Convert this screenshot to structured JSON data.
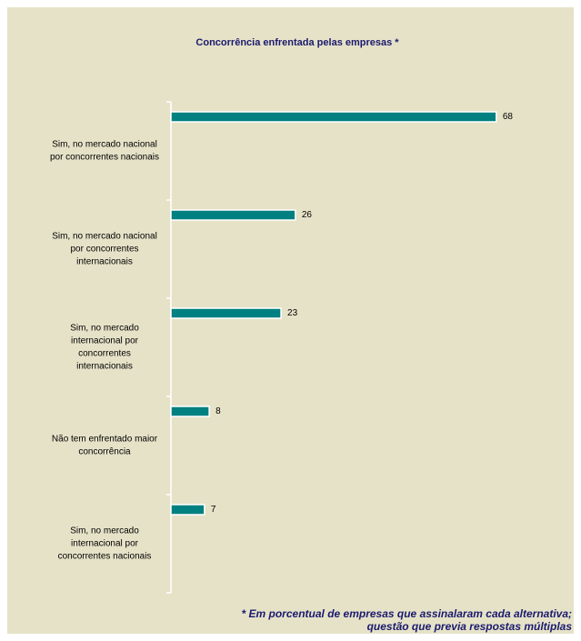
{
  "chart_data": {
    "type": "barh",
    "title": "Concorrência enfrentada pelas empresas *",
    "categories": [
      [
        "Sim, no mercado nacional",
        "por concorrentes nacionais"
      ],
      [
        "Sim, no mercado nacional",
        "por concorrentes",
        "internacionais"
      ],
      [
        "Sim, no mercado",
        "internacional por",
        "concorrentes",
        "internacionais"
      ],
      [
        "Não tem enfrentado maior",
        "concorrência"
      ],
      [
        "Sim, no mercado",
        "internacional por",
        "concorrentes nacionais"
      ]
    ],
    "values": [
      68,
      26,
      23,
      8,
      7
    ],
    "color": "#008080",
    "xlim": [
      0,
      80
    ],
    "note": [
      "* Em porcentual de empresas que assinalaram cada alternativa;",
      "questão que previa respostas múltiplas"
    ]
  }
}
